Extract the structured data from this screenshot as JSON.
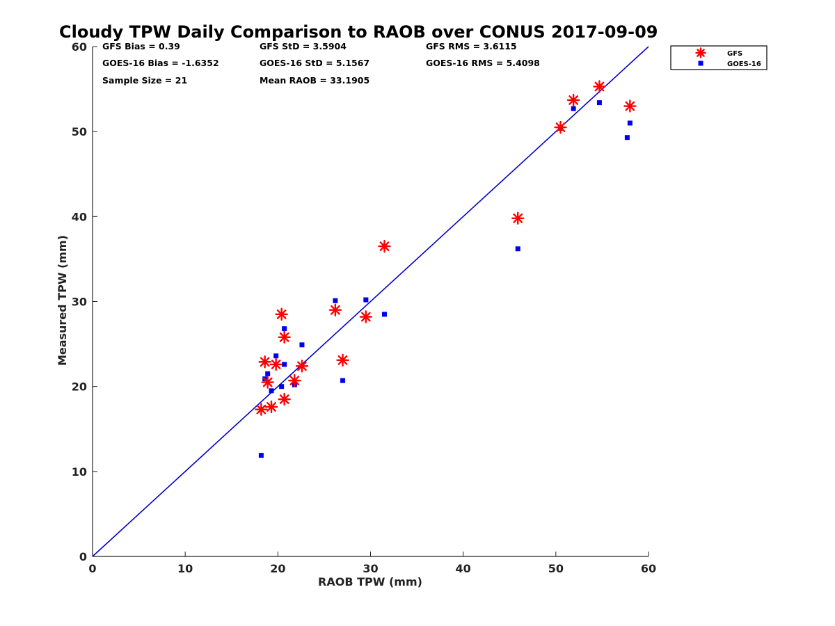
{
  "chart_data": {
    "type": "scatter",
    "title": "Cloudy TPW Daily Comparison to RAOB over CONUS 2017-09-09",
    "xlabel": "RAOB TPW (mm)",
    "ylabel": "Measured TPW (mm)",
    "xlim": [
      0,
      60
    ],
    "ylim": [
      0,
      60
    ],
    "xticks": [
      "0",
      "10",
      "20",
      "30",
      "40",
      "50",
      "60"
    ],
    "yticks": [
      "0",
      "10",
      "20",
      "30",
      "40",
      "50",
      "60"
    ],
    "grid": false,
    "legend_placement": "outside-top-right",
    "reference_line": {
      "from": [
        0,
        0
      ],
      "to": [
        60,
        60
      ],
      "color": "#0000cc"
    },
    "stats": [
      "GFS Bias = 0.39",
      "GFS StD = 3.5904",
      "GFS RMS = 3.6115",
      "GOES-16 Bias = -1.6352",
      "GOES-16 StD = 5.1567",
      "GOES-16 RMS = 5.4098",
      "Sample Size = 21",
      "Mean RAOB = 33.1905"
    ],
    "series": [
      {
        "name": "GFS",
        "marker": "asterisk",
        "color": "#ff0000",
        "points": [
          [
            18.2,
            17.3
          ],
          [
            19.3,
            17.6
          ],
          [
            18.9,
            20.5
          ],
          [
            18.6,
            22.9
          ],
          [
            19.8,
            22.6
          ],
          [
            20.4,
            28.5
          ],
          [
            20.7,
            25.8
          ],
          [
            20.7,
            18.5
          ],
          [
            21.8,
            20.7
          ],
          [
            22.6,
            22.4
          ],
          [
            26.2,
            29.0
          ],
          [
            27.0,
            23.1
          ],
          [
            29.5,
            28.2
          ],
          [
            31.5,
            36.5
          ],
          [
            45.9,
            39.8
          ],
          [
            50.5,
            50.5
          ],
          [
            51.9,
            53.7
          ],
          [
            54.7,
            55.3
          ],
          [
            58.0,
            53.0
          ]
        ]
      },
      {
        "name": "GOES-16",
        "marker": "square",
        "color": "#0000ee",
        "points": [
          [
            18.2,
            11.9
          ],
          [
            18.6,
            20.9
          ],
          [
            18.9,
            21.5
          ],
          [
            19.3,
            19.5
          ],
          [
            19.8,
            23.6
          ],
          [
            20.4,
            20.0
          ],
          [
            20.7,
            26.8
          ],
          [
            20.7,
            22.6
          ],
          [
            21.8,
            20.2
          ],
          [
            22.6,
            24.9
          ],
          [
            26.2,
            30.1
          ],
          [
            27.0,
            20.7
          ],
          [
            29.5,
            30.2
          ],
          [
            31.5,
            28.5
          ],
          [
            45.9,
            36.2
          ],
          [
            50.5,
            50.4
          ],
          [
            51.9,
            52.7
          ],
          [
            54.7,
            53.4
          ],
          [
            57.7,
            49.3
          ],
          [
            58.0,
            51.0
          ]
        ]
      }
    ]
  }
}
